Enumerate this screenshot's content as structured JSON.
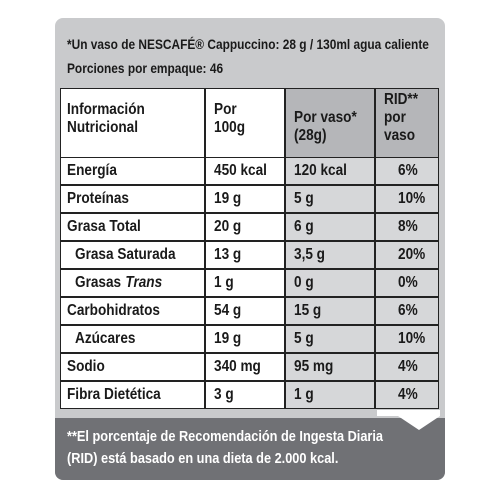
{
  "header": {
    "note": "*Un vaso de NESCAFÉ® Cappuccino: 28 g / 130ml agua caliente",
    "portions": "Porciones por empaque: 46"
  },
  "table": {
    "headers": [
      [
        "Información",
        "Nutricional"
      ],
      [
        "Por",
        "100g"
      ],
      [
        "Por vaso*",
        "(28g)"
      ],
      [
        "RID**",
        "por",
        "vaso"
      ]
    ],
    "rows": [
      [
        "Energía",
        "450 kcal",
        "120 kcal",
        "6%"
      ],
      [
        "Proteínas",
        "19 g",
        "5 g",
        "10%"
      ],
      [
        "Grasa Total",
        "20 g",
        "6 g",
        "8%"
      ],
      [
        "Grasa Saturada",
        "13 g",
        "3,5 g",
        "20%"
      ],
      [
        [
          "Grasas",
          "Trans"
        ],
        "1 g",
        "0 g",
        "0%"
      ],
      [
        "Carbohidratos",
        "54 g",
        "15 g",
        "6%"
      ],
      [
        "Azúcares",
        "19 g",
        "5 g",
        "10%"
      ],
      [
        "Sodio",
        "340 mg",
        "95 mg",
        "4%"
      ],
      [
        "Fibra Dietética",
        "3 g",
        "1 g",
        "4%"
      ]
    ]
  },
  "footer": [
    "**El porcentaje de Recomendación de Ingesta Diaria",
    "(RID) está basado en una dieta de 2.000 kcal."
  ]
}
